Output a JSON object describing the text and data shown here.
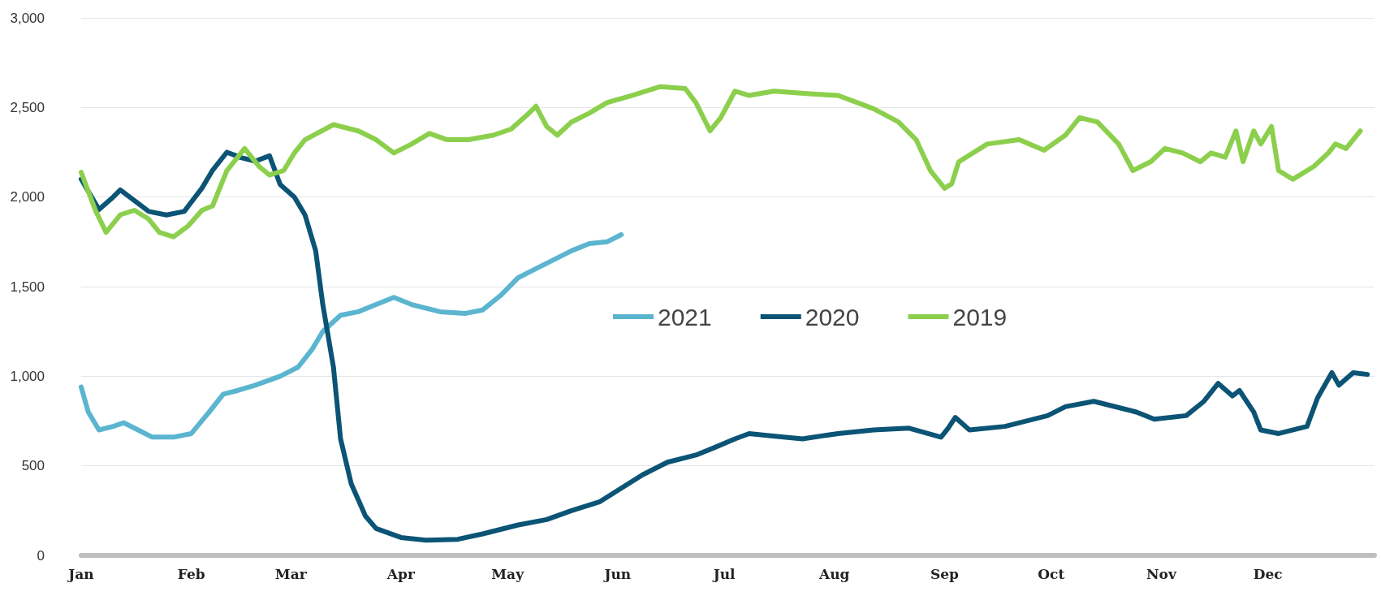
{
  "chart_data": {
    "type": "line",
    "xlim": [
      "--01-01",
      "--12-31"
    ],
    "xticks": [
      {
        "value": "--01-01",
        "label": "Jan"
      },
      {
        "value": "--02-01",
        "label": "Feb"
      },
      {
        "value": "--03-01",
        "label": "Mar"
      },
      {
        "value": "--04-01",
        "label": "Apr"
      },
      {
        "value": "--05-01",
        "label": "May"
      },
      {
        "value": "--06-01",
        "label": "Jun"
      },
      {
        "value": "--07-01",
        "label": "Jul"
      },
      {
        "value": "--08-01",
        "label": "Aug"
      },
      {
        "value": "--09-01",
        "label": "Sep"
      },
      {
        "value": "--10-01",
        "label": "Oct"
      },
      {
        "value": "--11-01",
        "label": "Nov"
      },
      {
        "value": "--12-01",
        "label": "Dec"
      }
    ],
    "ylim": [
      0,
      3000
    ],
    "yticks": [
      {
        "value": 0,
        "label": "0"
      },
      {
        "value": 500,
        "label": "500"
      },
      {
        "value": 1000,
        "label": "1,000"
      },
      {
        "value": 1500,
        "label": "1,500"
      },
      {
        "value": 2000,
        "label": "2,000"
      },
      {
        "value": 2500,
        "label": "2,500"
      },
      {
        "value": 3000,
        "label": "3,000"
      }
    ],
    "grid": "y",
    "legend": "center",
    "marker": "none",
    "line_style": "solid",
    "series": [
      {
        "name": "2021",
        "color": "#5bb5cf",
        "x": [
          "--01-01",
          "--01-03",
          "--01-06",
          "--01-10",
          "--01-13",
          "--01-17",
          "--01-21",
          "--01-27",
          "--02-01",
          "--02-06",
          "--02-10",
          "--02-14",
          "--02-19",
          "--02-26",
          "--03-03",
          "--03-07",
          "--03-10",
          "--03-15",
          "--03-20",
          "--03-25",
          "--03-30",
          "--04-04",
          "--04-12",
          "--04-19",
          "--04-24",
          "--04-29",
          "--05-04",
          "--05-09",
          "--05-14",
          "--05-19",
          "--05-24",
          "--05-29",
          "--06-02"
        ],
        "values": [
          940,
          800,
          700,
          720,
          740,
          700,
          660,
          660,
          680,
          800,
          900,
          920,
          950,
          1000,
          1050,
          1150,
          1250,
          1340,
          1360,
          1400,
          1440,
          1400,
          1360,
          1350,
          1370,
          1450,
          1550,
          1600,
          1650,
          1700,
          1740,
          1750,
          1790
        ]
      },
      {
        "name": "2020",
        "color": "#0b5475",
        "x": [
          "--01-01",
          "--01-06",
          "--01-10",
          "--01-12",
          "--01-16",
          "--01-20",
          "--01-25",
          "--01-30",
          "--02-04",
          "--02-07",
          "--02-11",
          "--02-15",
          "--02-19",
          "--02-23",
          "--02-26",
          "--03-02",
          "--03-05",
          "--03-08",
          "--03-10",
          "--03-13",
          "--03-15",
          "--03-18",
          "--03-22",
          "--03-25",
          "--04-01",
          "--04-08",
          "--04-17",
          "--04-24",
          "--05-04",
          "--05-12",
          "--05-19",
          "--05-27",
          "--05-31",
          "--06-08",
          "--06-15",
          "--06-23",
          "--06-28",
          "--07-04",
          "--07-08",
          "--07-13",
          "--07-23",
          "--08-02",
          "--08-12",
          "--08-22",
          "--08-31",
          "--09-02",
          "--09-04",
          "--09-08",
          "--09-18",
          "--09-30",
          "--10-05",
          "--10-13",
          "--10-25",
          "--10-30",
          "--11-08",
          "--11-13",
          "--11-17",
          "--11-21",
          "--11-23",
          "--11-27",
          "--11-29",
          "--12-04",
          "--12-12",
          "--12-15",
          "--12-19",
          "--12-21",
          "--12-25",
          "--12-29"
        ],
        "values": [
          2100,
          1930,
          2000,
          2040,
          1980,
          1920,
          1900,
          1920,
          2050,
          2150,
          2250,
          2220,
          2200,
          2230,
          2070,
          2000,
          1900,
          1700,
          1400,
          1050,
          650,
          400,
          220,
          150,
          100,
          85,
          90,
          120,
          170,
          200,
          250,
          300,
          350,
          450,
          520,
          560,
          600,
          650,
          680,
          670,
          650,
          680,
          700,
          710,
          660,
          710,
          770,
          700,
          720,
          780,
          830,
          860,
          800,
          760,
          780,
          860,
          960,
          890,
          920,
          800,
          700,
          680,
          720,
          880,
          1020,
          950,
          1020,
          1010
        ]
      },
      {
        "name": "2019",
        "color": "#8ccf4d",
        "x": [
          "--01-01",
          "--01-05",
          "--01-08",
          "--01-12",
          "--01-16",
          "--01-20",
          "--01-23",
          "--01-27",
          "--01-31",
          "--02-04",
          "--02-07",
          "--02-11",
          "--02-16",
          "--02-20",
          "--02-23",
          "--02-27",
          "--03-02",
          "--03-05",
          "--03-13",
          "--03-20",
          "--03-25",
          "--03-30",
          "--04-04",
          "--04-09",
          "--04-14",
          "--04-20",
          "--04-27",
          "--05-02",
          "--05-07",
          "--05-09",
          "--05-12",
          "--05-15",
          "--05-19",
          "--05-24",
          "--05-29",
          "--06-05",
          "--06-13",
          "--06-20",
          "--06-23",
          "--06-27",
          "--06-30",
          "--07-04",
          "--07-08",
          "--07-15",
          "--07-25",
          "--08-02",
          "--08-12",
          "--08-19",
          "--08-24",
          "--08-28",
          "--09-01",
          "--09-03",
          "--09-05",
          "--09-13",
          "--09-22",
          "--09-29",
          "--10-05",
          "--10-09",
          "--10-14",
          "--10-20",
          "--10-24",
          "--10-29",
          "--11-02",
          "--11-07",
          "--11-12",
          "--11-15",
          "--11-19",
          "--11-22",
          "--11-24",
          "--11-27",
          "--11-29",
          "--12-02",
          "--12-04",
          "--12-08",
          "--12-14",
          "--12-18",
          "--12-20",
          "--12-23",
          "--12-27"
        ],
        "values": [
          2138,
          1926,
          1803,
          1901,
          1926,
          1877,
          1803,
          1778,
          1837,
          1926,
          1951,
          2148,
          2271,
          2172,
          2123,
          2148,
          2246,
          2320,
          2404,
          2369,
          2320,
          2246,
          2296,
          2355,
          2320,
          2320,
          2345,
          2379,
          2468,
          2507,
          2394,
          2345,
          2419,
          2468,
          2527,
          2567,
          2616,
          2606,
          2527,
          2369,
          2443,
          2591,
          2567,
          2591,
          2576,
          2567,
          2493,
          2419,
          2320,
          2148,
          2049,
          2074,
          2197,
          2296,
          2320,
          2261,
          2345,
          2443,
          2419,
          2296,
          2148,
          2197,
          2271,
          2246,
          2197,
          2246,
          2222,
          2369,
          2197,
          2369,
          2296,
          2394,
          2148,
          2099,
          2172,
          2246,
          2296,
          2271,
          2369
        ]
      }
    ]
  }
}
